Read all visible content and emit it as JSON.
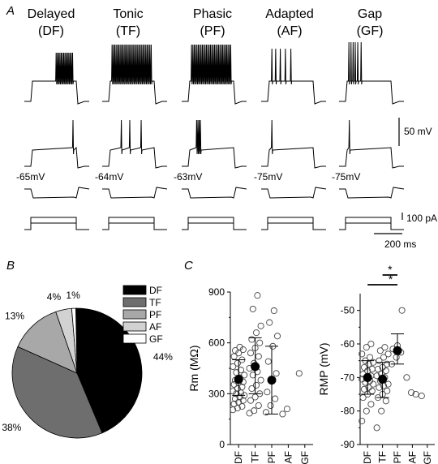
{
  "panels": {
    "A": "A",
    "B": "B",
    "C": "C"
  },
  "traces": {
    "groups": [
      {
        "name": "Delayed",
        "abbr": "(DF)",
        "rmp": "-65mV"
      },
      {
        "name": "Tonic",
        "abbr": "(TF)",
        "rmp": "-64mV"
      },
      {
        "name": "Phasic",
        "abbr": "(PF)",
        "rmp": "-63mV"
      },
      {
        "name": "Adapted",
        "abbr": "(AF)",
        "rmp": "-75mV"
      },
      {
        "name": "Gap",
        "abbr": "(GF)",
        "rmp": "-75mV"
      }
    ],
    "scale_voltage": "50 mV",
    "scale_current": "100 pA",
    "scale_time": "200 ms"
  },
  "chart_data": [
    {
      "type": "pie",
      "labels": [
        "DF",
        "TF",
        "PF",
        "AF",
        "GF"
      ],
      "values": [
        44,
        38,
        13,
        4,
        1
      ],
      "value_labels": [
        "44%",
        "38%",
        "13%",
        "4%",
        "1%"
      ],
      "colors": [
        "#000000",
        "#6e6e6e",
        "#a8a8a8",
        "#d2d2d2",
        "#ffffff"
      ],
      "legend": "right"
    },
    {
      "type": "scatter",
      "ylabel": "Rm (MΩ)",
      "categories": [
        "DF",
        "TF",
        "PF",
        "AF",
        "GF"
      ],
      "ylim": [
        0,
        900
      ],
      "yticks": [
        0,
        300,
        600,
        900
      ],
      "mean": [
        385,
        460,
        380,
        null,
        null
      ],
      "sd_low": [
        290,
        300,
        180,
        null,
        null
      ],
      "sd_high": [
        500,
        630,
        580,
        null,
        null
      ],
      "points": [
        [
          205,
          215,
          225,
          240,
          250,
          260,
          270,
          280,
          290,
          300,
          305,
          315,
          330,
          340,
          355,
          365,
          370,
          380,
          395,
          410,
          425,
          440,
          460,
          480,
          500,
          520,
          540,
          560,
          555,
          575
        ],
        [
          185,
          200,
          230,
          260,
          280,
          300,
          330,
          350,
          380,
          410,
          430,
          450,
          480,
          520,
          540,
          570,
          600,
          620,
          660,
          700,
          800,
          880
        ],
        [
          190,
          230,
          270,
          310,
          380,
          420,
          490,
          580,
          640,
          720,
          790
        ],
        [
          180,
          210
        ],
        [
          420
        ]
      ]
    },
    {
      "type": "scatter",
      "ylabel": "RMP (mV)",
      "categories": [
        "DF",
        "TF",
        "PF",
        "AF",
        "GF"
      ],
      "ylim": [
        -90,
        -45
      ],
      "yticks": [
        -90,
        -80,
        -70,
        -60,
        -50
      ],
      "mean": [
        -70,
        -70.5,
        -62,
        null,
        null
      ],
      "sd_low": [
        -75,
        -76,
        -66,
        null,
        null
      ],
      "sd_high": [
        -65,
        -65.5,
        -57,
        null,
        null
      ],
      "points": [
        [
          -83,
          -80,
          -78,
          -76,
          -75,
          -74,
          -73.5,
          -73,
          -72,
          -71.5,
          -71,
          -70.5,
          -70,
          -69.5,
          -69,
          -68,
          -67.5,
          -67,
          -66,
          -65.5,
          -65,
          -64,
          -63,
          -61,
          -60
        ],
        [
          -85,
          -80,
          -77,
          -76,
          -75,
          -74,
          -73,
          -72.5,
          -72,
          -71,
          -70,
          -69.5,
          -69,
          -68,
          -67.5,
          -67,
          -66,
          -65,
          -64,
          -63,
          -62,
          -61
        ],
        [
          -66,
          -64,
          -62.5,
          -61.5,
          -60.5,
          -50
        ],
        [
          -70,
          -74.5,
          -75
        ],
        [
          -75.5
        ]
      ],
      "significance": [
        "*",
        "*"
      ]
    }
  ]
}
